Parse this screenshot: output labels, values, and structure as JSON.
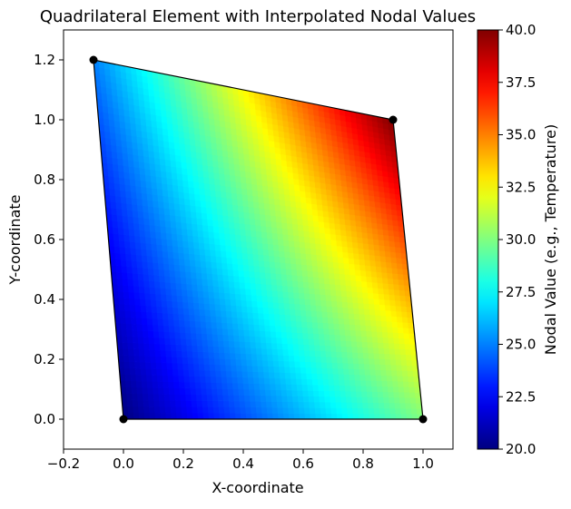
{
  "chart_data": {
    "type": "heatmap",
    "title": "Quadrilateral Element with Interpolated Nodal Values",
    "xlabel": "X-coordinate",
    "ylabel": "Y-coordinate",
    "xlim": [
      -0.2,
      1.1
    ],
    "ylim": [
      -0.1,
      1.3
    ],
    "xticks": [
      -0.2,
      0.0,
      0.2,
      0.4,
      0.6,
      0.8,
      1.0
    ],
    "yticks": [
      0.0,
      0.2,
      0.4,
      0.6,
      0.8,
      1.0,
      1.2
    ],
    "xtick_labels": [
      "−0.2",
      "0.0",
      "0.2",
      "0.4",
      "0.6",
      "0.8",
      "1.0"
    ],
    "ytick_labels": [
      "0.0",
      "0.2",
      "0.4",
      "0.6",
      "0.8",
      "1.0",
      "1.2"
    ],
    "nodes": [
      {
        "x": 0.0,
        "y": 0.0,
        "value": 20
      },
      {
        "x": 1.0,
        "y": 0.0,
        "value": 30
      },
      {
        "x": 0.9,
        "y": 1.0,
        "value": 40
      },
      {
        "x": -0.1,
        "y": 1.2,
        "value": 25
      }
    ],
    "colorbar": {
      "label": "Nodal Value (e.g., Temperature)",
      "range": [
        20.0,
        40.0
      ],
      "ticks": [
        20.0,
        22.5,
        25.0,
        27.5,
        30.0,
        32.5,
        35.0,
        37.5,
        40.0
      ],
      "tick_labels": [
        "20.0",
        "22.5",
        "25.0",
        "27.5",
        "30.0",
        "32.5",
        "35.0",
        "37.5",
        "40.0"
      ],
      "colormap": "jet"
    },
    "grid": false
  }
}
